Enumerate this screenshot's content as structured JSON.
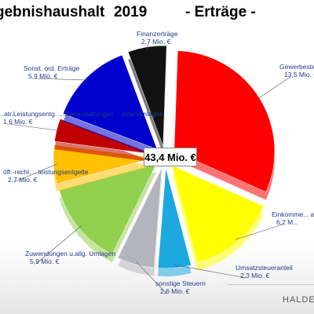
{
  "title": {
    "part1": "gebnishaushalt",
    "year": "2019",
    "part2": "- Erträge -"
  },
  "chart_data": {
    "type": "pie",
    "total_label": "43,4 Mio. €",
    "slices": [
      {
        "label": "Gewerbesteu...",
        "value_label": "13,5 Mio. €",
        "value": 13.5,
        "color": "#ff0000"
      },
      {
        "label": "Einkomme... ant...",
        "value_label": "6,2 M...",
        "value": 6.2,
        "color": "#ffff00"
      },
      {
        "label": "Umsatzsteueranteil",
        "value_label": "2,3 Mio. €",
        "value": 2.3,
        "color": "#1ea8e0"
      },
      {
        "label": "sonstige Steuern",
        "value_label": "2,6 Mio. €",
        "value": 2.6,
        "color": "#b4b4be"
      },
      {
        "label": "Zuwendungen u.allg. Umlagen",
        "value_label": "5,9 Mio. €",
        "value": 5.9,
        "color": "#92d050"
      },
      {
        "label": "öff.-rechl. ...leistungsentgelte",
        "value_label": "2,7 Mio. €",
        "value": 2.7,
        "color": "#ffc000"
      },
      {
        "label": "...atr.Leistungsentg. ...stenerstattungen ...ostenumlagen",
        "value_label": "1,6 Mio. €",
        "value": 1.6,
        "color": "#c00000"
      },
      {
        "label": "Sonst. ord. Erträge",
        "value_label": "5,9 Mio. €",
        "value": 5.9,
        "color": "#0000cc"
      },
      {
        "label": "Finanzerträge",
        "value_label": "2,7 Mio. €",
        "value": 2.7,
        "color": "#111111"
      }
    ]
  },
  "logo": "HALDEN"
}
